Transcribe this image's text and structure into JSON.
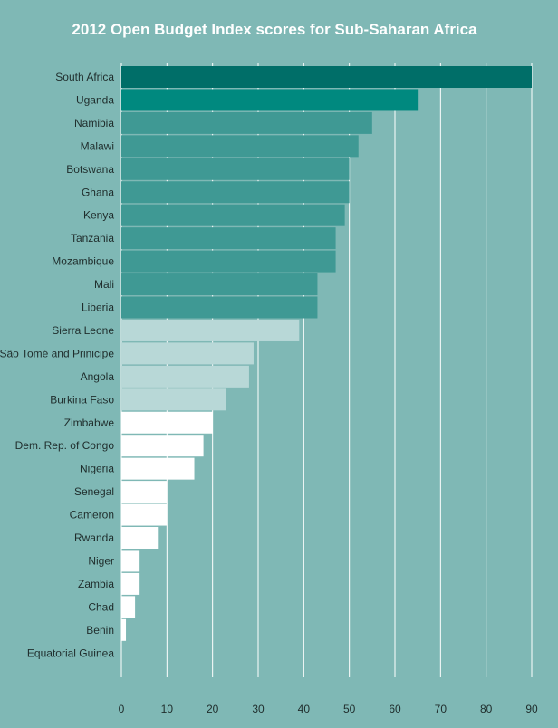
{
  "chart_data": {
    "type": "bar",
    "orientation": "horizontal",
    "title": "2012 Open Budget Index scores for Sub-Saharan Africa",
    "xlabel": "",
    "ylabel": "",
    "xlim": [
      0,
      90
    ],
    "xticks": [
      0,
      10,
      20,
      30,
      40,
      50,
      60,
      70,
      80,
      90
    ],
    "grid": true,
    "categories": [
      "South Africa",
      "Uganda",
      "Namibia",
      "Malawi",
      "Botswana",
      "Ghana",
      "Kenya",
      "Tanzania",
      "Mozambique",
      "Mali",
      "Liberia",
      "Sierra Leone",
      "São Tomé and Prinicipe",
      "Angola",
      "Burkina Faso",
      "Zimbabwe",
      "Dem. Rep. of Congo",
      "Nigeria",
      "Senegal",
      "Cameron",
      "Rwanda",
      "Niger",
      "Zambia",
      "Chad",
      "Benin",
      "Equatorial Guinea"
    ],
    "values": [
      90,
      65,
      55,
      52,
      50,
      50,
      49,
      47,
      47,
      43,
      43,
      39,
      29,
      28,
      23,
      20,
      18,
      16,
      10,
      10,
      8,
      4,
      4,
      3,
      1,
      0
    ],
    "colors": [
      "#006e68",
      "#00897f",
      "#3f9994",
      "#3f9994",
      "#3f9994",
      "#3f9994",
      "#3f9994",
      "#3f9994",
      "#3f9994",
      "#3f9994",
      "#3f9994",
      "#b8d8d7",
      "#b8d8d7",
      "#b8d8d7",
      "#b8d8d7",
      "#ffffff",
      "#ffffff",
      "#ffffff",
      "#ffffff",
      "#ffffff",
      "#ffffff",
      "#ffffff",
      "#ffffff",
      "#ffffff",
      "#ffffff",
      "#ffffff"
    ]
  }
}
